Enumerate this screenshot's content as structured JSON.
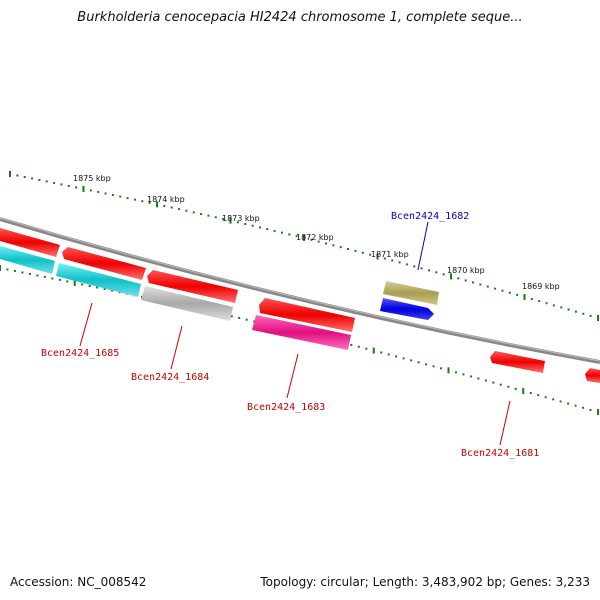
{
  "title": "Burkholderia cenocepacia HI2424 chromosome 1, complete seque...",
  "footer": {
    "accession": "Accession: NC_008542",
    "summary": "Topology: circular; Length: 3,483,902 bp; Genes: 3,233"
  },
  "kbp_ticks": [
    "1875 kbp",
    "1874 kbp",
    "1873 kbp",
    "1872 kbp",
    "1871 kbp",
    "1870 kbp",
    "1869 kbp"
  ],
  "gene_labels": [
    {
      "text": "Bcen2424_1682",
      "color": "#0000cc"
    },
    {
      "text": "Bcen2424_1685",
      "color": "#cc0000"
    },
    {
      "text": "Bcen2424_1684",
      "color": "#cc0000"
    },
    {
      "text": "Bcen2424_1683",
      "color": "#cc0000"
    },
    {
      "text": "Bcen2424_1681",
      "color": "#cc0000"
    }
  ],
  "colors": {
    "backbone": "#777777",
    "tick_track": "#1a7a1a",
    "red_gene": "#ee1111",
    "cyan_gene": "#11c8cc",
    "gray_gene": "#bbbbbb",
    "magenta_gene": "#ee2299",
    "khaki_gene": "#b0a860",
    "blue_gene": "#1111dd"
  }
}
